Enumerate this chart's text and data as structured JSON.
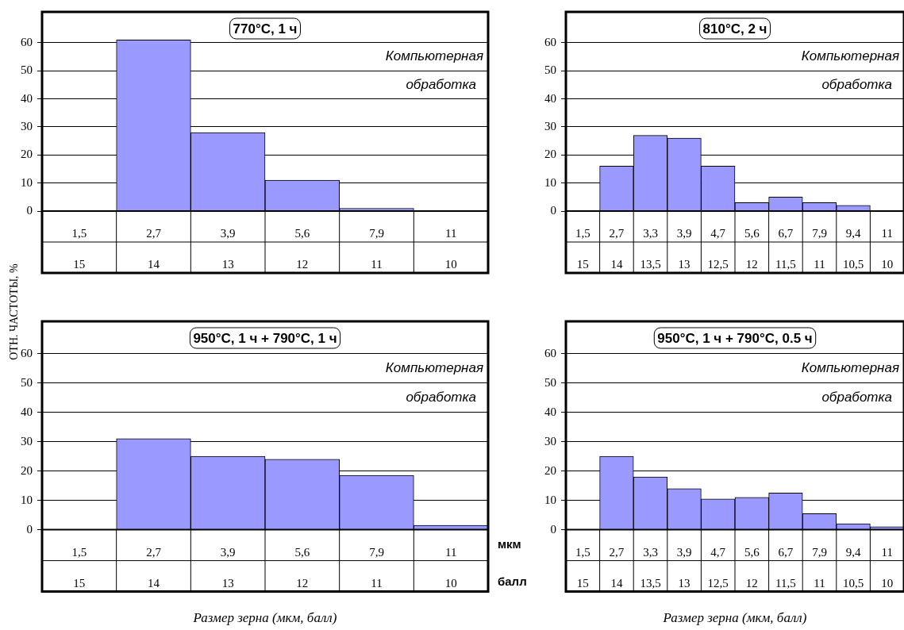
{
  "chart_data": [
    {
      "type": "bar",
      "title": "770°C, 1 ч",
      "ylabel": "ОТН. ЧАСТОТЫ, %",
      "categories": [
        "1,5\n15",
        "2,7\n14",
        "3,9\n13",
        "5,6\n12",
        "7,9\n11",
        "11\n10"
      ],
      "values": [
        null,
        61,
        28,
        11,
        1,
        null
      ],
      "color": "#9999ff",
      "ylim": [
        0,
        71
      ],
      "yticks": [
        0,
        10,
        20,
        30,
        40,
        50,
        60
      ],
      "grid": "y",
      "annotations": [
        "Компьютерная\nобработка"
      ]
    },
    {
      "type": "bar",
      "title": "810°C, 2 ч",
      "categories": [
        "1,5\n15",
        "2,7\n14",
        "3,3\n13,5",
        "3,9\n13",
        "4,7\n12,5",
        "5,6\n12",
        "6,7\n11,5",
        "7,9\n11",
        "9,4\n10,5",
        "11\n10"
      ],
      "values": [
        null,
        16,
        27,
        26,
        16,
        3,
        5,
        3,
        2,
        null
      ],
      "color": "#9999ff",
      "ylim": [
        0,
        71
      ],
      "yticks": [
        0,
        10,
        20,
        30,
        40,
        50,
        60
      ],
      "grid": "y",
      "annotations": [
        "Компьютерная\nобработка"
      ]
    },
    {
      "type": "bar",
      "title": "950°C, 1 ч + 790°C, 1 ч",
      "xlabel": "Размер зерна (мкм, балл)",
      "categories": [
        "1,5\n15",
        "2,7\n14",
        "3,9\n13",
        "5,6\n12",
        "7,9\n11",
        "11\n10"
      ],
      "values": [
        null,
        31,
        25,
        24,
        18.5,
        1.5
      ],
      "color": "#9999ff",
      "ylim": [
        0,
        71
      ],
      "yticks": [
        0,
        10,
        20,
        30,
        40,
        50,
        60
      ],
      "grid": "y",
      "annotations": [
        "Компьютерная\nобработка",
        "мкм",
        "балл"
      ]
    },
    {
      "type": "bar",
      "title": "950°C, 1 ч + 790°C, 0.5 ч",
      "xlabel": "Размер зерна (мкм, балл)",
      "categories": [
        "1,5\n15",
        "2,7\n14",
        "3,3\n13,5",
        "3,9\n13",
        "4,7\n12,5",
        "5,6\n12",
        "6,7\n11,5",
        "7,9\n11",
        "9,4\n10,5",
        "11\n10"
      ],
      "values": [
        null,
        25,
        18,
        14,
        10.5,
        11,
        12.5,
        5.5,
        2,
        1
      ],
      "color": "#9999ff",
      "ylim": [
        0,
        71
      ],
      "yticks": [
        0,
        10,
        20,
        30,
        40,
        50,
        60
      ],
      "grid": "y",
      "annotations": [
        "Компьютерная\nобработка"
      ]
    }
  ]
}
